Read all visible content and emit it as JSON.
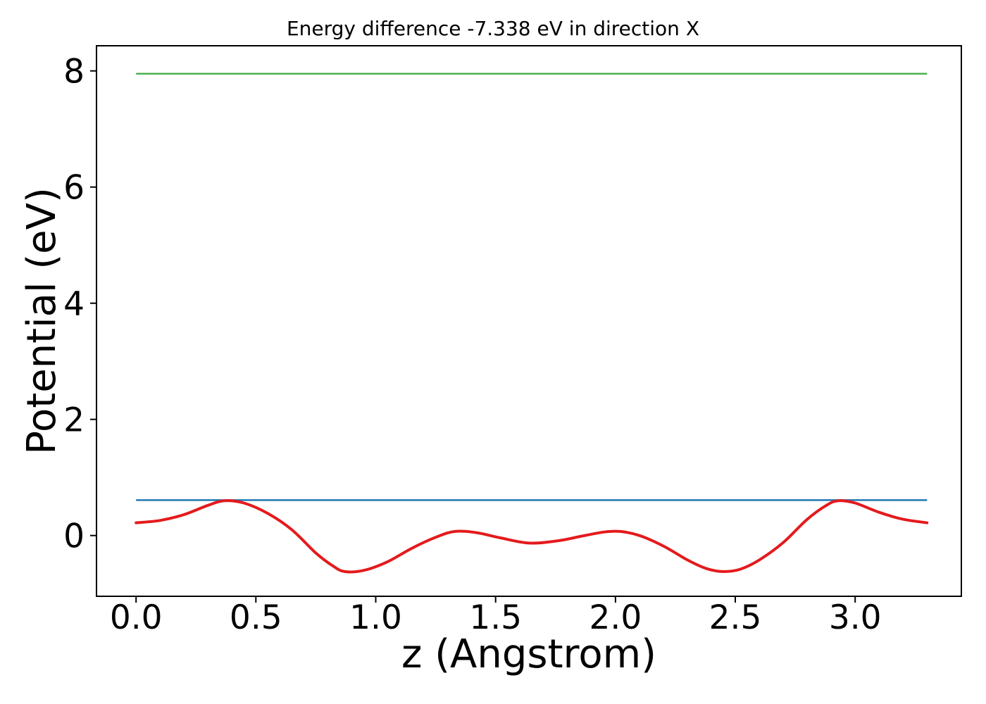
{
  "title": "Energy difference -7.338 eV in direction X",
  "chart_data": {
    "type": "line",
    "title": "Energy difference -7.338 eV in direction X",
    "xlabel": "z (Angstrom)",
    "ylabel": "Potential (eV)",
    "xlim": [
      -0.165,
      3.443
    ],
    "ylim": [
      -1.046,
      8.433
    ],
    "grid": false,
    "legend": null,
    "xticks": {
      "values": [
        0.0,
        0.5,
        1.0,
        1.5,
        2.0,
        2.5,
        3.0
      ],
      "labels": [
        "0.0",
        "0.5",
        "1.0",
        "1.5",
        "2.0",
        "2.5",
        "3.0"
      ]
    },
    "yticks": {
      "values": [
        0,
        2,
        4,
        6,
        8
      ],
      "labels": [
        "0",
        "2",
        "4",
        "6",
        "8"
      ]
    },
    "axis_color": "#000000",
    "series": [
      {
        "name": "green-line",
        "type": "hline",
        "y": 7.95,
        "x_start": 0.0,
        "x_end": 3.3,
        "color": "#4caf50",
        "width": 2.5
      },
      {
        "name": "blue-line",
        "type": "hline",
        "y": 0.61,
        "x_start": 0.0,
        "x_end": 3.3,
        "color": "#1f77b4",
        "width": 2.5
      },
      {
        "name": "red-curve",
        "type": "curve",
        "color": "#e41a1c",
        "width": 4,
        "points": [
          [
            0.0,
            0.22
          ],
          [
            0.1,
            0.26
          ],
          [
            0.2,
            0.36
          ],
          [
            0.3,
            0.52
          ],
          [
            0.37,
            0.6
          ],
          [
            0.45,
            0.56
          ],
          [
            0.55,
            0.38
          ],
          [
            0.65,
            0.1
          ],
          [
            0.75,
            -0.3
          ],
          [
            0.82,
            -0.52
          ],
          [
            0.87,
            -0.62
          ],
          [
            0.95,
            -0.6
          ],
          [
            1.05,
            -0.45
          ],
          [
            1.15,
            -0.22
          ],
          [
            1.25,
            -0.03
          ],
          [
            1.33,
            0.07
          ],
          [
            1.42,
            0.05
          ],
          [
            1.52,
            -0.04
          ],
          [
            1.64,
            -0.13
          ],
          [
            1.76,
            -0.09
          ],
          [
            1.86,
            -0.01
          ],
          [
            1.95,
            0.06
          ],
          [
            2.02,
            0.07
          ],
          [
            2.1,
            0.0
          ],
          [
            2.2,
            -0.18
          ],
          [
            2.3,
            -0.42
          ],
          [
            2.38,
            -0.57
          ],
          [
            2.45,
            -0.62
          ],
          [
            2.52,
            -0.58
          ],
          [
            2.6,
            -0.42
          ],
          [
            2.7,
            -0.12
          ],
          [
            2.8,
            0.28
          ],
          [
            2.88,
            0.52
          ],
          [
            2.93,
            0.6
          ],
          [
            3.0,
            0.56
          ],
          [
            3.1,
            0.4
          ],
          [
            3.2,
            0.28
          ],
          [
            3.3,
            0.22
          ]
        ]
      }
    ]
  }
}
